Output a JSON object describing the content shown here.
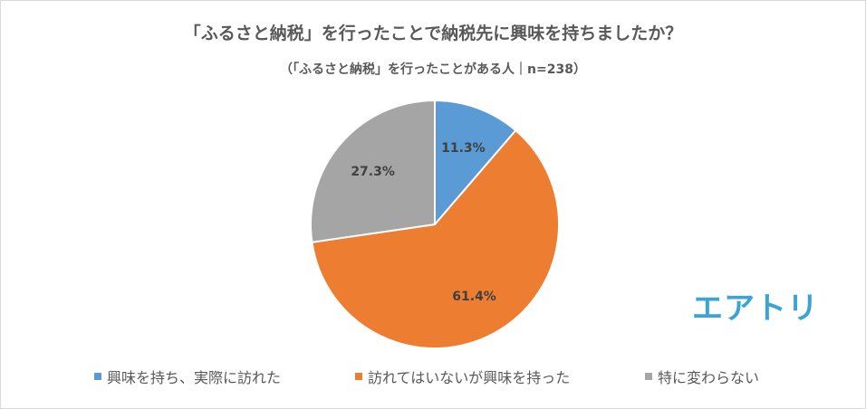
{
  "chart_data": {
    "type": "pie",
    "title": "「ふるさと納税」を行ったことで納税先に興味を持ちましたか？",
    "subtitle": "（「ふるさと納税」を行ったことがある人｜n=238）",
    "slices": [
      {
        "label": "興味を持ち、実際に訪れた",
        "value": 11.3,
        "display": "11.3%",
        "color": "#5b9bd5"
      },
      {
        "label": "訪れてはいないが興味を持った",
        "value": 61.4,
        "display": "61.4%",
        "color": "#ed7d31"
      },
      {
        "label": "特に変わらない",
        "value": 27.3,
        "display": "27.3%",
        "color": "#a5a5a5"
      }
    ],
    "legend_position": "bottom"
  },
  "brand": {
    "logo_text": "エアトリ",
    "logo_color": "#3aa3d8"
  }
}
